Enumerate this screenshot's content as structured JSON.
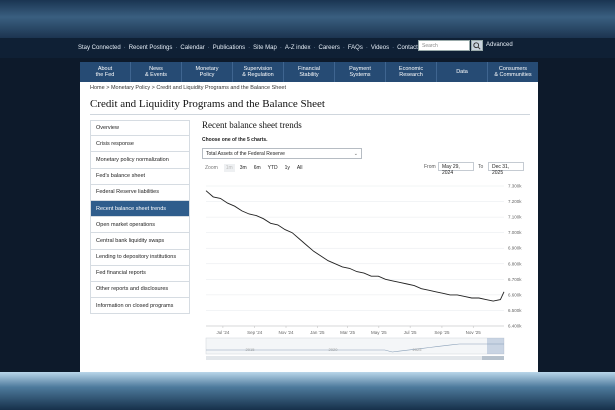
{
  "utility_links": [
    "Stay Connected",
    "Recent Postings",
    "Calendar",
    "Publications",
    "Site Map",
    "A-Z index",
    "Careers",
    "FAQs",
    "Videos",
    "Contact"
  ],
  "search": {
    "placeholder": "Search",
    "advanced_label": "Advanced"
  },
  "main_nav": [
    "About\nthe Fed",
    "News\n& Events",
    "Monetary\nPolicy",
    "Supervision\n& Regulation",
    "Financial\nStability",
    "Payment\nSystems",
    "Economic\nResearch",
    "Data",
    "Consumers\n& Communities"
  ],
  "breadcrumb": [
    "Home",
    "Monetary Policy",
    "Credit and Liquidity Programs and the Balance Sheet"
  ],
  "page_title": "Credit and Liquidity Programs and the Balance Sheet",
  "sidebar": {
    "active_index": 5,
    "items": [
      "Overview",
      "Crisis response",
      "Monetary policy normalization",
      "Fed's balance sheet",
      "Federal Reserve liabilities",
      "Recent balance sheet trends",
      "Open market operations",
      "Central bank liquidity swaps",
      "Lending to depository institutions",
      "Fed financial reports",
      "Other reports and disclosures",
      "Information on closed programs"
    ]
  },
  "content": {
    "section_title": "Recent balance sheet trends",
    "chart_prompt": "Choose one of the 5 charts.",
    "selected_chart": "Total Assets of the Federal Reserve",
    "zoom": {
      "label": "Zoom",
      "options": [
        "1m",
        "3m",
        "6m",
        "YTD",
        "1y",
        "All"
      ],
      "disabled": "1m"
    },
    "range": {
      "from_label": "From",
      "from": "May 29, 2024",
      "to_label": "To",
      "to": "Dec 31, 2025"
    }
  },
  "colors": {
    "nav_bg": "#264b74",
    "active_side": "#2f5d8c",
    "line": "#222222"
  },
  "chart_data": {
    "type": "line",
    "x_ticks": [
      "Jul '24",
      "Sep '24",
      "Nov '24",
      "Jan '25",
      "Mar '25",
      "May '25",
      "Jul '25",
      "Sep '25",
      "Nov '25"
    ],
    "y_ticks": [
      "6.400k",
      "6.500k",
      "6.600k",
      "6.700k",
      "6.800k",
      "6.900k",
      "7.000k",
      "7.100k",
      "7.200k",
      "7.300k"
    ],
    "ylim": [
      6400,
      7300
    ],
    "series": [
      {
        "x": [
          "2024-05-29",
          "2024-06-12",
          "2024-06-26",
          "2024-07-10",
          "2024-07-24",
          "2024-08-07",
          "2024-08-21",
          "2024-09-04",
          "2024-09-18",
          "2024-10-02",
          "2024-10-16",
          "2024-10-30",
          "2024-11-13",
          "2024-11-27",
          "2024-12-11",
          "2024-12-25",
          "2025-01-08",
          "2025-01-22",
          "2025-02-05",
          "2025-02-19",
          "2025-03-05",
          "2025-03-19",
          "2025-04-02",
          "2025-04-16",
          "2025-04-30",
          "2025-05-14",
          "2025-05-28",
          "2025-06-11",
          "2025-06-25",
          "2025-07-09",
          "2025-07-23",
          "2025-08-06",
          "2025-08-20",
          "2025-09-03",
          "2025-09-17",
          "2025-10-01",
          "2025-10-15",
          "2025-10-29",
          "2025-11-12",
          "2025-11-26",
          "2025-12-10",
          "2025-12-24",
          "2025-12-31"
        ],
        "values": [
          7270,
          7230,
          7220,
          7190,
          7170,
          7140,
          7120,
          7110,
          7090,
          7060,
          7050,
          7020,
          7000,
          6960,
          6920,
          6880,
          6850,
          6820,
          6800,
          6780,
          6770,
          6750,
          6740,
          6720,
          6720,
          6700,
          6690,
          6680,
          6670,
          6660,
          6640,
          6630,
          6620,
          6610,
          6600,
          6600,
          6590,
          6580,
          6580,
          6570,
          6560,
          6570,
          6620
        ]
      }
    ],
    "navigator_years": [
      "2015",
      "2020",
      "2025"
    ]
  }
}
